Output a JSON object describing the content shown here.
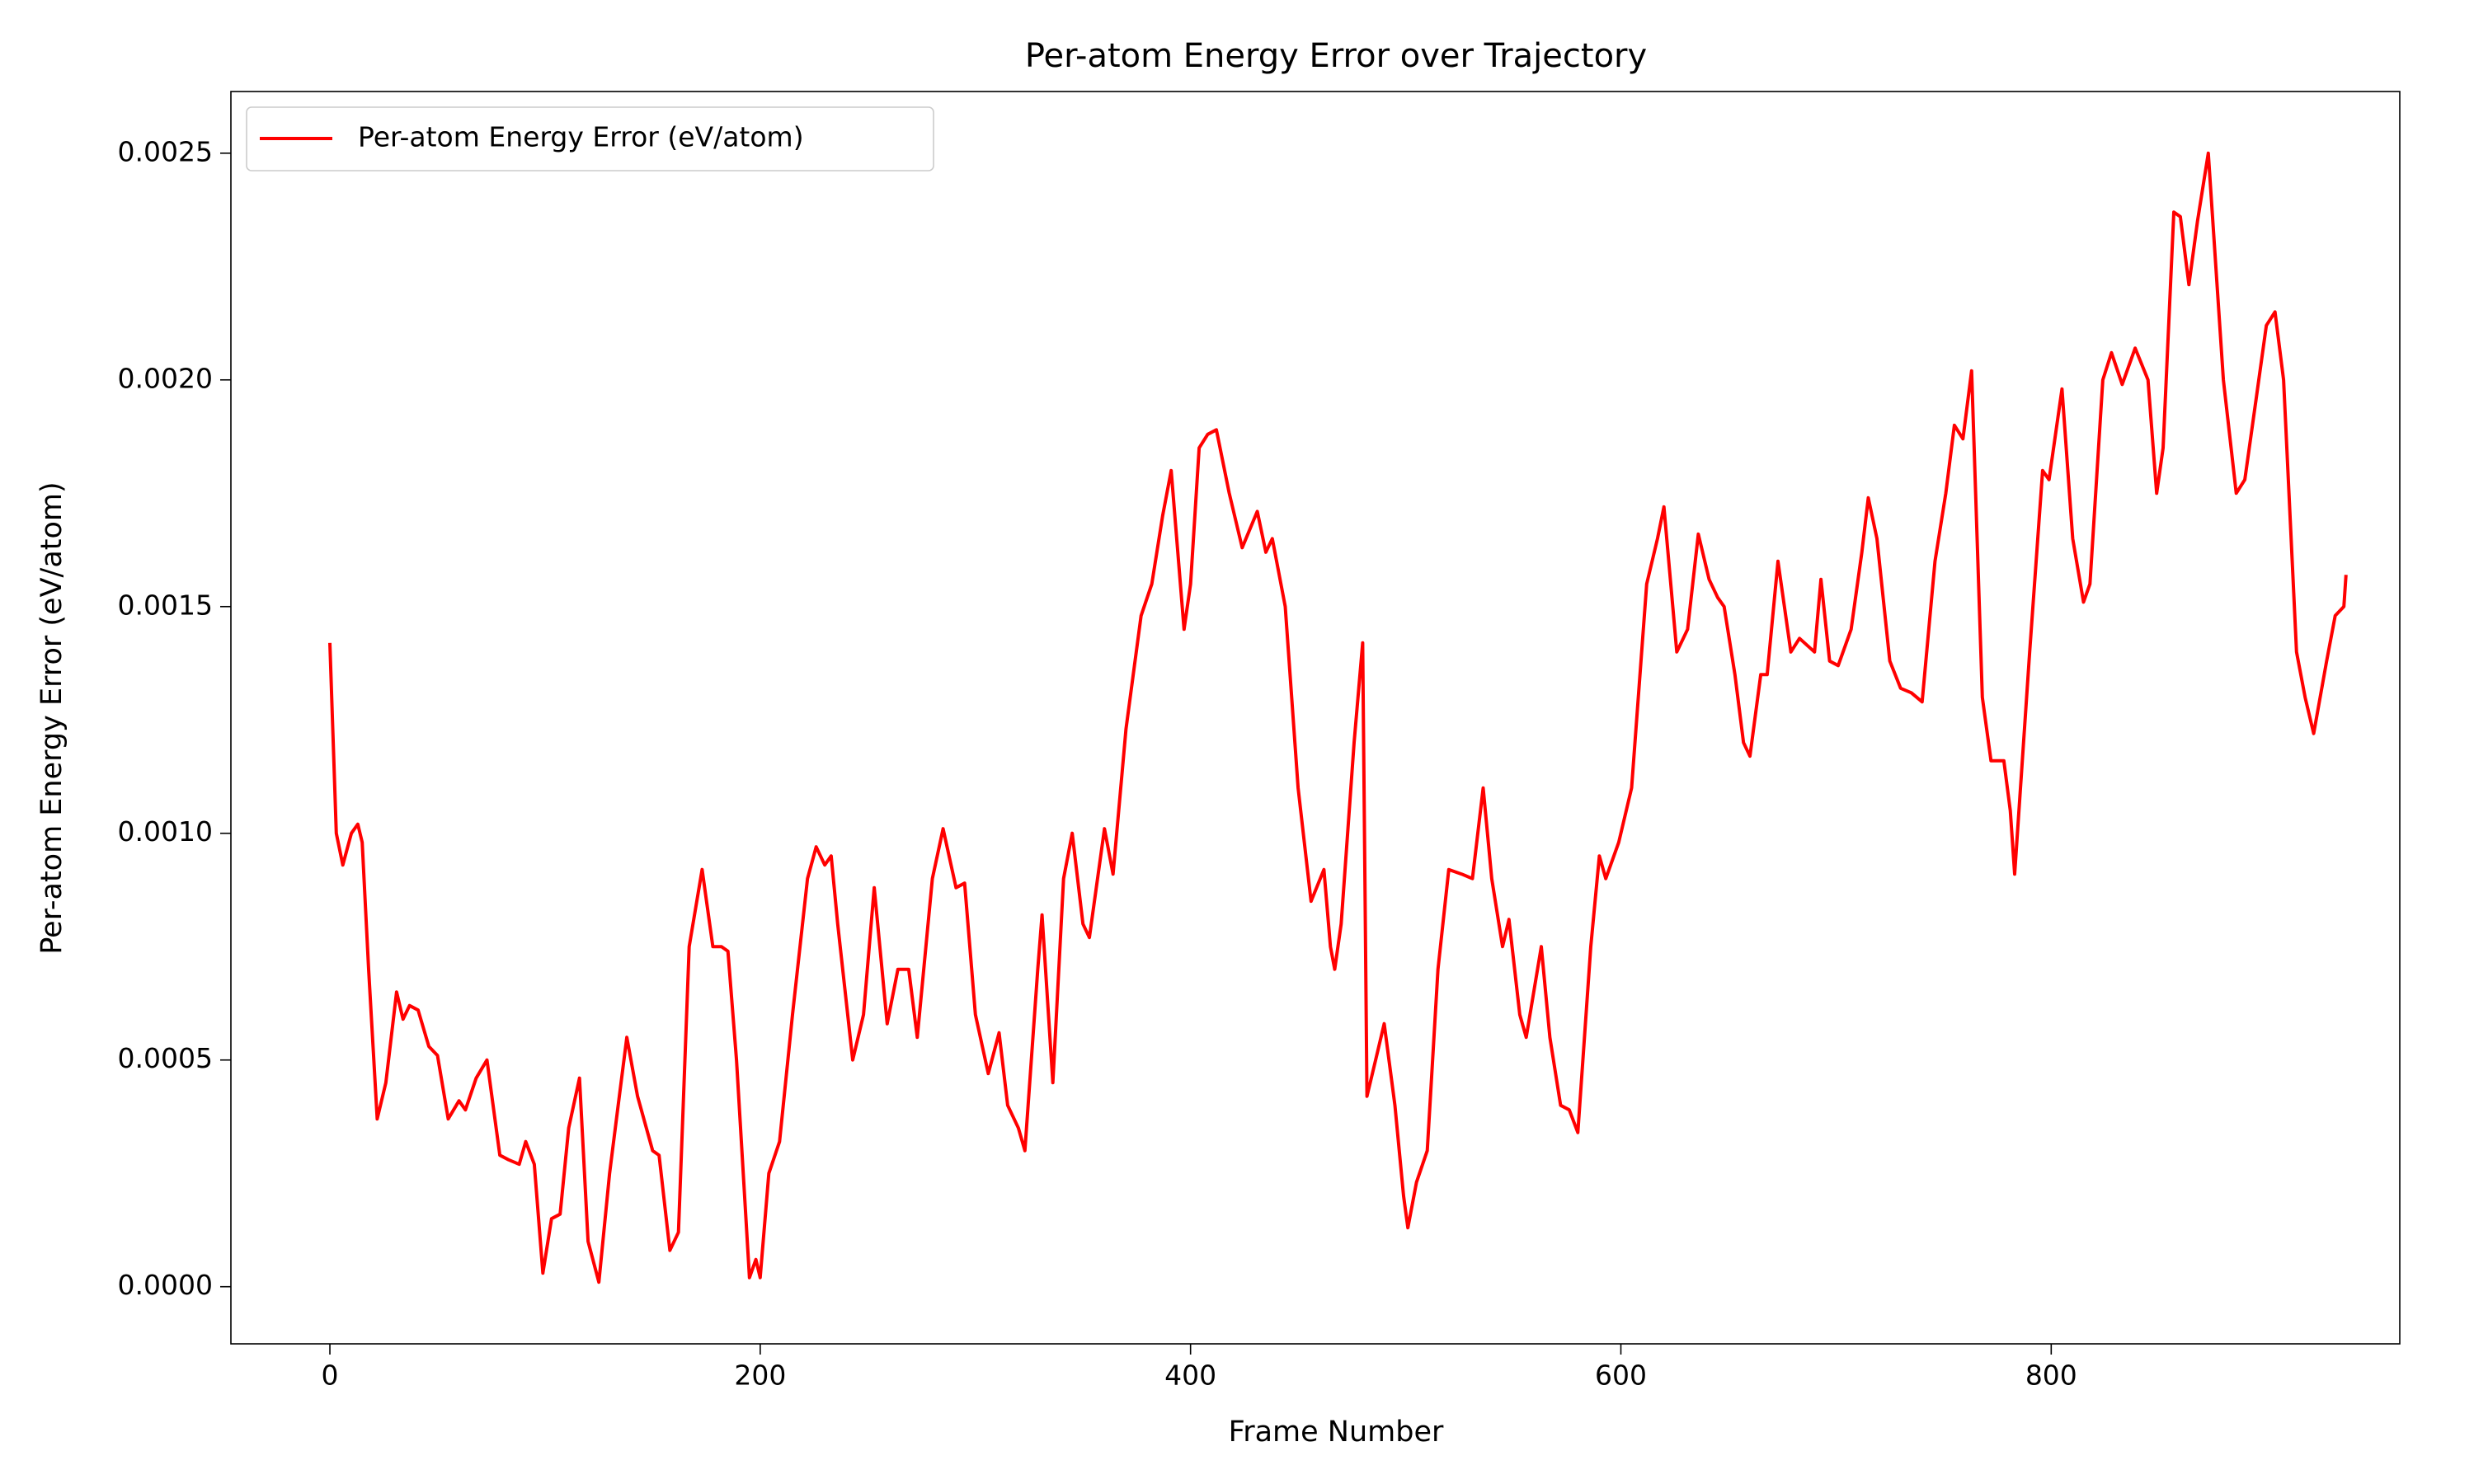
{
  "chart_data": {
    "type": "line",
    "title": "Per-atom Energy Error over Trajectory",
    "xlabel": "Frame Number",
    "ylabel": "Per-atom Energy Error (eV/atom)",
    "legend": "upper left",
    "xlim": [
      -46,
      962
    ],
    "ylim": [
      -0.000126,
      0.002636
    ],
    "xticks": [
      0,
      200,
      400,
      600,
      800
    ],
    "yticks": [
      {
        "value": 0,
        "label": "0.0000"
      },
      {
        "value": 0.0005,
        "label": "0.0005"
      },
      {
        "value": 0.001,
        "label": "0.0010"
      },
      {
        "value": 0.0015,
        "label": "0.0015"
      },
      {
        "value": 0.002,
        "label": "0.0020"
      },
      {
        "value": 0.0025,
        "label": "0.0025"
      }
    ],
    "x": [
      0,
      3,
      6,
      10,
      13,
      15,
      18,
      22,
      26,
      31,
      34,
      37,
      41,
      46,
      50,
      55,
      60,
      63,
      68,
      73,
      79,
      83,
      88,
      91,
      95,
      99,
      103,
      107,
      111,
      116,
      120,
      125,
      130,
      134,
      138,
      143,
      150,
      153,
      158,
      162,
      167,
      173,
      178,
      182,
      185,
      189,
      195,
      198,
      200,
      204,
      209,
      215,
      222,
      226,
      230,
      233,
      236,
      243,
      248,
      253,
      259,
      264,
      269,
      273,
      280,
      285,
      291,
      295,
      300,
      306,
      311,
      315,
      320,
      323,
      329,
      331,
      336,
      341,
      345,
      350,
      353,
      360,
      364,
      370,
      377,
      382,
      387,
      391,
      397,
      400,
      404,
      408,
      412,
      418,
      424,
      431,
      435,
      438,
      444,
      450,
      456,
      462,
      465,
      467,
      470,
      476,
      480,
      482,
      486,
      490,
      495,
      499,
      501,
      505,
      510,
      515,
      520,
      526,
      531,
      536,
      540,
      545,
      548,
      553,
      556,
      563,
      567,
      572,
      576,
      580,
      586,
      590,
      593,
      599,
      605,
      612,
      617,
      620,
      626,
      631,
      636,
      641,
      645,
      648,
      653,
      657,
      660,
      665,
      668,
      673,
      679,
      683,
      690,
      693,
      697,
      701,
      707,
      712,
      715,
      719,
      725,
      730,
      735,
      740,
      746,
      751,
      755,
      759,
      763,
      768,
      772,
      778,
      781,
      783,
      790,
      796,
      799,
      805,
      810,
      815,
      818,
      824,
      828,
      833,
      839,
      845,
      849,
      852,
      857,
      860,
      864,
      868,
      873,
      880,
      886,
      890,
      895,
      900,
      904,
      908,
      914,
      918,
      922,
      928,
      932,
      936,
      937
    ],
    "series": [
      {
        "name": "Per-atom Energy Error (eV/atom)",
        "color": "#ff0000",
        "values": [
          0.00142,
          0.001,
          0.00093,
          0.001,
          0.00102,
          0.00098,
          0.0007,
          0.00037,
          0.00045,
          0.00065,
          0.00059,
          0.00062,
          0.00061,
          0.00053,
          0.00051,
          0.00037,
          0.00041,
          0.00039,
          0.00046,
          0.0005,
          0.00029,
          0.00028,
          0.00027,
          0.00032,
          0.00027,
          3e-05,
          0.00015,
          0.00016,
          0.00035,
          0.00046,
          0.0001,
          1e-05,
          0.00025,
          0.0004,
          0.00055,
          0.00042,
          0.0003,
          0.00029,
          8e-05,
          0.00012,
          0.00075,
          0.00092,
          0.00075,
          0.00075,
          0.00074,
          0.0005,
          2e-05,
          6e-05,
          2e-05,
          0.00025,
          0.00032,
          0.0006,
          0.0009,
          0.00097,
          0.00093,
          0.00095,
          0.0008,
          0.0005,
          0.0006,
          0.00088,
          0.00058,
          0.0007,
          0.0007,
          0.00055,
          0.0009,
          0.00101,
          0.00088,
          0.00089,
          0.0006,
          0.00047,
          0.00056,
          0.0004,
          0.00035,
          0.0003,
          0.0007,
          0.00082,
          0.00045,
          0.0009,
          0.001,
          0.0008,
          0.00077,
          0.00101,
          0.00091,
          0.00123,
          0.00148,
          0.00155,
          0.0017,
          0.0018,
          0.00145,
          0.00155,
          0.00185,
          0.00188,
          0.00189,
          0.00175,
          0.00163,
          0.00171,
          0.00162,
          0.00165,
          0.0015,
          0.0011,
          0.00085,
          0.00092,
          0.00075,
          0.0007,
          0.0008,
          0.0012,
          0.00142,
          0.00042,
          0.0005,
          0.00058,
          0.0004,
          0.0002,
          0.00013,
          0.00023,
          0.0003,
          0.0007,
          0.00092,
          0.00091,
          0.0009,
          0.0011,
          0.0009,
          0.00075,
          0.00081,
          0.0006,
          0.00055,
          0.00075,
          0.00055,
          0.0004,
          0.00039,
          0.00034,
          0.00075,
          0.00095,
          0.0009,
          0.00098,
          0.0011,
          0.00155,
          0.00165,
          0.00172,
          0.0014,
          0.00145,
          0.00166,
          0.00156,
          0.00152,
          0.0015,
          0.00135,
          0.0012,
          0.00117,
          0.00135,
          0.00135,
          0.0016,
          0.0014,
          0.00143,
          0.0014,
          0.00156,
          0.00138,
          0.00137,
          0.00145,
          0.00162,
          0.00174,
          0.00165,
          0.00138,
          0.00132,
          0.00131,
          0.00129,
          0.0016,
          0.00175,
          0.0019,
          0.00187,
          0.00202,
          0.0013,
          0.00116,
          0.00116,
          0.00105,
          0.00091,
          0.0014,
          0.0018,
          0.00178,
          0.00198,
          0.00165,
          0.00151,
          0.00155,
          0.002,
          0.00206,
          0.00199,
          0.00207,
          0.002,
          0.00175,
          0.00185,
          0.00237,
          0.00236,
          0.00221,
          0.00235,
          0.0025,
          0.002,
          0.00175,
          0.00178,
          0.00195,
          0.00212,
          0.00215,
          0.002,
          0.0014,
          0.0013,
          0.00122,
          0.00138,
          0.00148,
          0.0015,
          0.00157
        ]
      }
    ]
  }
}
